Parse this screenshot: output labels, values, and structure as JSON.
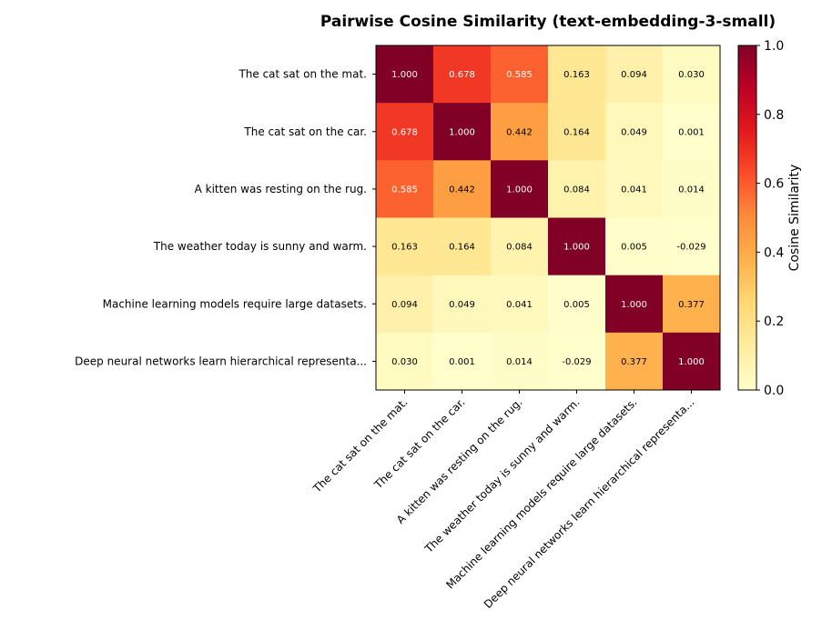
{
  "chart_data": {
    "type": "heatmap",
    "title": "Pairwise Cosine Similarity (text-embedding-3-small)",
    "xlabel": "",
    "ylabel": "",
    "labels": [
      "The cat sat on the mat.",
      "The cat sat on the car.",
      "A kitten was resting on the rug.",
      "The weather today is sunny and warm.",
      "Machine learning models require large datasets.",
      "Deep neural networks learn hierarchical representa..."
    ],
    "values": [
      [
        1.0,
        0.678,
        0.585,
        0.163,
        0.094,
        0.03
      ],
      [
        0.678,
        1.0,
        0.442,
        0.164,
        0.049,
        0.001
      ],
      [
        0.585,
        0.442,
        1.0,
        0.084,
        0.041,
        0.014
      ],
      [
        0.163,
        0.164,
        0.084,
        1.0,
        0.005,
        -0.029
      ],
      [
        0.094,
        0.049,
        0.041,
        0.005,
        1.0,
        0.377
      ],
      [
        0.03,
        0.001,
        0.014,
        -0.029,
        0.377,
        1.0
      ]
    ],
    "value_format_decimals": 3,
    "colormap": "YlOrRd",
    "colormap_stops": [
      "#ffffcc",
      "#ffeda0",
      "#fed976",
      "#feb24c",
      "#fd8d3c",
      "#fc4e2a",
      "#e31a1c",
      "#bd0026",
      "#800026"
    ],
    "vmin": 0.0,
    "vmax": 1.0,
    "colorbar": {
      "label": "Cosine Similarity",
      "ticks": [
        0.0,
        0.2,
        0.4,
        0.6,
        0.8,
        1.0
      ],
      "tick_labels": [
        "0.0",
        "0.2",
        "0.4",
        "0.6",
        "0.8",
        "1.0"
      ]
    },
    "annotation_colors": {
      "dark": "#000000",
      "light": "#ffffff"
    },
    "annotation_threshold": 0.5
  }
}
